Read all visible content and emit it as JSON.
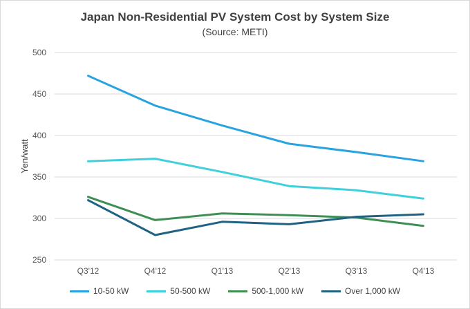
{
  "chart_data": {
    "type": "line",
    "title": "Japan Non-Residential PV System Cost by System Size",
    "subtitle": "(Source: METI)",
    "xlabel": "",
    "ylabel": "Yen/watt",
    "categories": [
      "Q3'12",
      "Q4'12",
      "Q1'13",
      "Q2'13",
      "Q3'13",
      "Q4'13"
    ],
    "ylim": [
      250,
      500
    ],
    "yticks": [
      "250",
      "300",
      "350",
      "400",
      "450",
      "500"
    ],
    "grid": true,
    "legend_position": "bottom",
    "series": [
      {
        "name": "10-50 kW",
        "color": "#29a3e0",
        "values": [
          472,
          436,
          412,
          390,
          380,
          369
        ]
      },
      {
        "name": "50-500 kW",
        "color": "#3fd0dc",
        "values": [
          369,
          372,
          356,
          339,
          334,
          324
        ]
      },
      {
        "name": "500-1,000 kW",
        "color": "#3f8f55",
        "values": [
          326,
          298,
          306,
          304,
          301,
          291
        ]
      },
      {
        "name": "Over 1,000 kW",
        "color": "#1f6282",
        "values": [
          322,
          280,
          296,
          293,
          302,
          305
        ]
      }
    ]
  }
}
